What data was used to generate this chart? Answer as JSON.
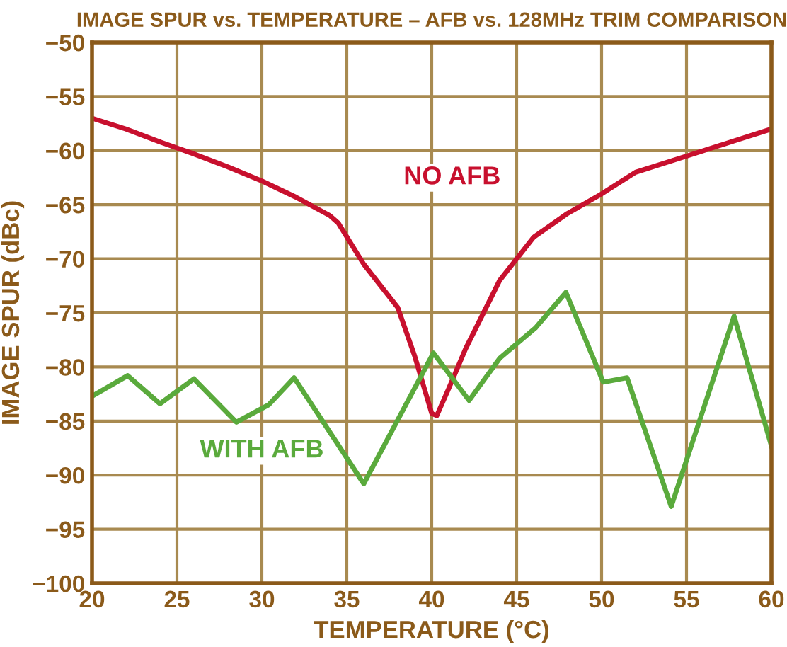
{
  "chart_data": {
    "type": "line",
    "title": "IMAGE SPUR vs. TEMPERATURE – AFB vs. 128MHz TRIM COMPARISON",
    "xlabel": "TEMPERATURE (°C)",
    "ylabel": "IMAGE SPUR (dBc)",
    "xlim": [
      20,
      60
    ],
    "xticks": [
      20,
      25,
      30,
      35,
      40,
      45,
      50,
      55,
      60
    ],
    "ylim": [
      -100,
      -50
    ],
    "yticks": [
      -100,
      -95,
      -90,
      -85,
      -80,
      -75,
      -70,
      -65,
      -60,
      -55,
      -50
    ],
    "grid": true,
    "legend": false,
    "marker": "none",
    "line_style": "solid",
    "series": [
      {
        "name": "NO AFB",
        "color": "#c8102e",
        "x": [
          20,
          22,
          24,
          26,
          28,
          30,
          32,
          34,
          34.5,
          36,
          38,
          39,
          40,
          40.3,
          41,
          42,
          44,
          46,
          48,
          50,
          52,
          55,
          58,
          60
        ],
        "values": [
          -57,
          -58,
          -59.2,
          -60.3,
          -61.5,
          -62.8,
          -64.3,
          -66,
          -66.7,
          -70.5,
          -74.5,
          -79,
          -84.3,
          -84.5,
          -82,
          -78.3,
          -72,
          -68,
          -65.8,
          -64,
          -62,
          -60.5,
          -59,
          -58
        ]
      },
      {
        "name": "WITH AFB",
        "color": "#5aaa3c",
        "x": [
          20,
          22.1,
          24,
          26,
          28.5,
          30.4,
          31.9,
          36,
          40.1,
          42.2,
          44,
          46.1,
          47.9,
          50.1,
          51.5,
          54.1,
          57.8,
          60
        ],
        "values": [
          -82.7,
          -80.8,
          -83.4,
          -81.1,
          -85.1,
          -83.5,
          -81,
          -90.8,
          -78.7,
          -83.1,
          -79.2,
          -76.4,
          -73.1,
          -81.4,
          -81,
          -92.9,
          -75.3,
          -87.3
        ]
      }
    ]
  }
}
